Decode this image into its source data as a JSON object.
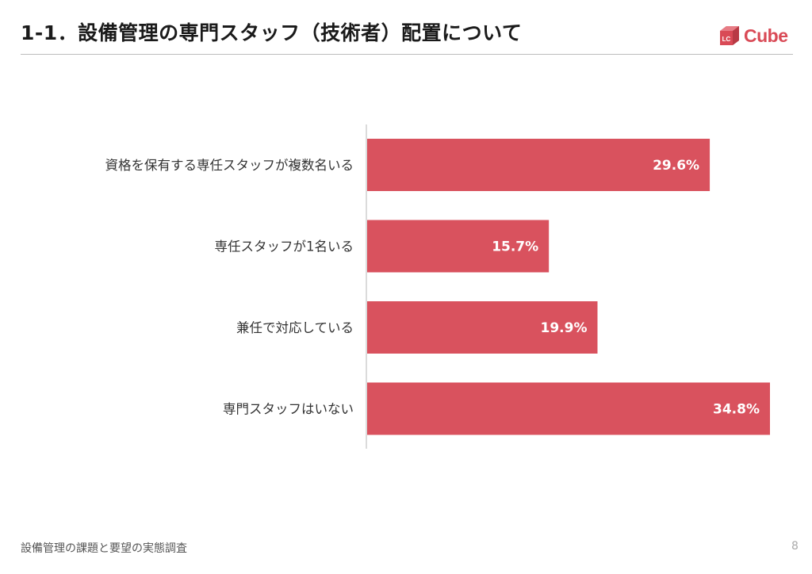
{
  "header": {
    "title": "1-1．設備管理の専門スタッフ（技術者）配置について",
    "logo": {
      "badge": "LC",
      "wordmark": "Cube",
      "icon": "red-cube-icon",
      "color": "#d94a56"
    }
  },
  "chart_data": {
    "type": "bar",
    "orientation": "horizontal",
    "categories": [
      "資格を保有する専任スタッフが複数名いる",
      "専任スタッフが1名いる",
      "兼任で対応している",
      "専門スタッフはいない"
    ],
    "values": [
      29.6,
      15.7,
      19.9,
      34.8
    ],
    "data_labels": [
      "29.6%",
      "15.7%",
      "19.9%",
      "34.8%"
    ],
    "unit": "%",
    "xlim": [
      0,
      35
    ],
    "grid": false,
    "legend": "none",
    "bar_color": "#d9525e"
  },
  "footer": {
    "text": "設備管理の課題と要望の実態調査",
    "page_number": "8"
  }
}
